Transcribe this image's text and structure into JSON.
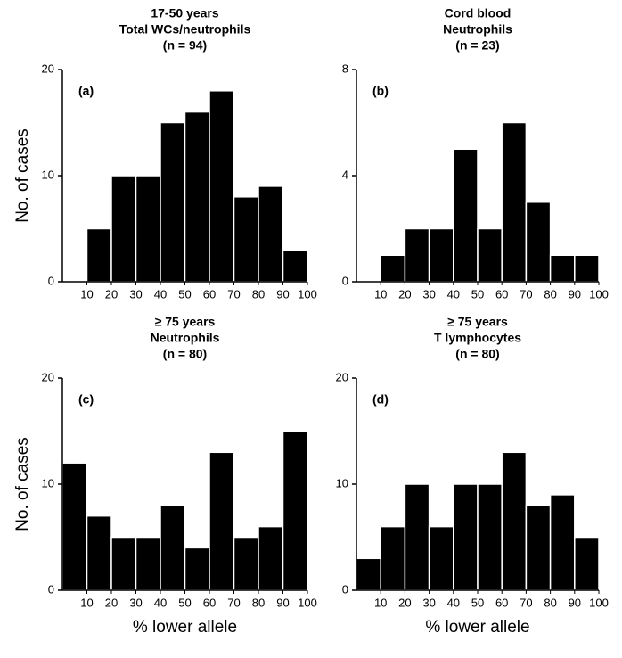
{
  "chart_data": [
    {
      "type": "histogram",
      "title": [
        "17-50 years",
        "Total WCs/neutrophils",
        "(n = 94)"
      ],
      "panel_label": "(a)",
      "ylabel": "No. of cases",
      "bins": [
        10,
        20,
        30,
        40,
        50,
        60,
        70,
        80,
        90,
        100
      ],
      "values": [
        5,
        10,
        10,
        15,
        16,
        18,
        8,
        9,
        3
      ],
      "color": "#000000",
      "xlim": [
        0,
        100
      ],
      "xticks": [
        10,
        20,
        30,
        40,
        50,
        60,
        70,
        80,
        90,
        100
      ],
      "ylim": [
        0,
        20
      ],
      "yticks": [
        0,
        10,
        20
      ]
    },
    {
      "type": "histogram",
      "title": [
        "Cord blood",
        "Neutrophils",
        "(n = 23)"
      ],
      "panel_label": "(b)",
      "bins": [
        10,
        20,
        30,
        40,
        50,
        60,
        70,
        80,
        90,
        100
      ],
      "values": [
        1,
        2,
        2,
        5,
        2,
        6,
        3,
        1,
        1
      ],
      "color": "#000000",
      "xlim": [
        0,
        100
      ],
      "xticks": [
        10,
        20,
        30,
        40,
        50,
        60,
        70,
        80,
        90,
        100
      ],
      "ylim": [
        0,
        8
      ],
      "yticks": [
        0,
        4,
        8
      ]
    },
    {
      "type": "histogram",
      "title": [
        "≥ 75 years",
        "Neutrophils",
        "(n = 80)"
      ],
      "panel_label": "(c)",
      "ylabel": "No. of cases",
      "xlabel": "% lower allele",
      "bins": [
        0,
        10,
        20,
        30,
        40,
        50,
        60,
        70,
        80,
        90,
        100
      ],
      "values": [
        12,
        7,
        5,
        5,
        8,
        4,
        13,
        5,
        6,
        15
      ],
      "color": "#000000",
      "xlim": [
        0,
        100
      ],
      "xticks": [
        10,
        20,
        30,
        40,
        50,
        60,
        70,
        80,
        90,
        100
      ],
      "ylim": [
        0,
        20
      ],
      "yticks": [
        0,
        10,
        20
      ]
    },
    {
      "type": "histogram",
      "title": [
        "≥ 75 years",
        "T lymphocytes",
        "(n = 80)"
      ],
      "panel_label": "(d)",
      "xlabel": "% lower allele",
      "bins": [
        0,
        10,
        20,
        30,
        40,
        50,
        60,
        70,
        80,
        90,
        100
      ],
      "values": [
        3,
        6,
        10,
        6,
        10,
        10,
        13,
        8,
        9,
        5
      ],
      "color": "#000000",
      "xlim": [
        0,
        100
      ],
      "xticks": [
        10,
        20,
        30,
        40,
        50,
        60,
        70,
        80,
        90,
        100
      ],
      "ylim": [
        0,
        20
      ],
      "yticks": [
        0,
        10,
        20
      ]
    }
  ]
}
